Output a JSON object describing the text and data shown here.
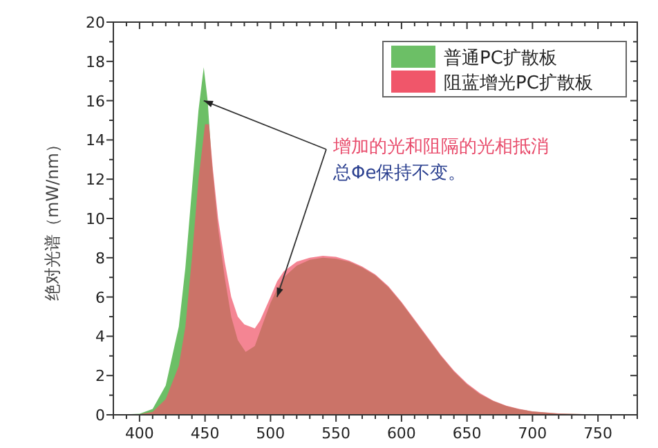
{
  "chart_data": {
    "type": "area",
    "ylabel": "绝对光谱（mW/nm）",
    "xlim": [
      380,
      780
    ],
    "xticks": [
      400,
      450,
      500,
      550,
      600,
      650,
      700,
      750
    ],
    "ylim": [
      0,
      20
    ],
    "yticks": [
      0,
      2,
      4,
      6,
      8,
      10,
      12,
      14,
      16,
      18,
      20
    ],
    "grid": false,
    "legend": "top right",
    "series": [
      {
        "name": "普通PC扩散板",
        "color": "#6cbf66",
        "x": [
          380,
          400,
          410,
          420,
          430,
          435,
          440,
          445,
          449,
          452,
          455,
          460,
          465,
          470,
          475,
          481,
          488,
          495,
          500,
          505,
          510,
          520,
          530,
          540,
          550,
          560,
          570,
          580,
          590,
          600,
          610,
          620,
          630,
          640,
          650,
          660,
          670,
          680,
          690,
          700,
          720,
          750,
          780
        ],
        "values": [
          0,
          0.05,
          0.3,
          1.5,
          4.5,
          7.5,
          11.5,
          15.5,
          17.7,
          16,
          13,
          9.5,
          7,
          5,
          3.8,
          3.2,
          3.5,
          4.8,
          5.7,
          6.4,
          7,
          7.6,
          7.9,
          8,
          7.95,
          7.8,
          7.5,
          7.1,
          6.5,
          5.7,
          4.8,
          3.9,
          3,
          2.2,
          1.55,
          1.05,
          0.7,
          0.45,
          0.28,
          0.17,
          0.06,
          0.02,
          0
        ]
      },
      {
        "name": "阻蓝增光PC扩散板",
        "color": "#f0566a",
        "x": [
          380,
          400,
          410,
          420,
          430,
          435,
          440,
          445,
          450,
          453,
          456,
          460,
          465,
          470,
          475,
          480,
          488,
          492,
          500,
          505,
          510,
          520,
          530,
          540,
          550,
          560,
          570,
          580,
          590,
          600,
          610,
          620,
          630,
          640,
          650,
          660,
          670,
          680,
          690,
          700,
          720,
          750,
          780
        ],
        "values": [
          0,
          0.03,
          0.15,
          0.8,
          2.5,
          4.5,
          8,
          12,
          14.8,
          14.8,
          12.5,
          10,
          7.8,
          6,
          5,
          4.6,
          4.4,
          4.8,
          6,
          6.8,
          7.3,
          7.8,
          8,
          8.1,
          8.05,
          7.85,
          7.55,
          7.15,
          6.55,
          5.75,
          4.85,
          3.95,
          3.05,
          2.25,
          1.6,
          1.1,
          0.72,
          0.47,
          0.3,
          0.18,
          0.07,
          0.02,
          0
        ]
      }
    ],
    "annotations": [
      {
        "text": "增加的光和阻隔的光相抵消",
        "x": 449,
        "y": 16
      },
      {
        "text": "总Φe保持不变。",
        "x": 505,
        "y": 6
      }
    ]
  }
}
